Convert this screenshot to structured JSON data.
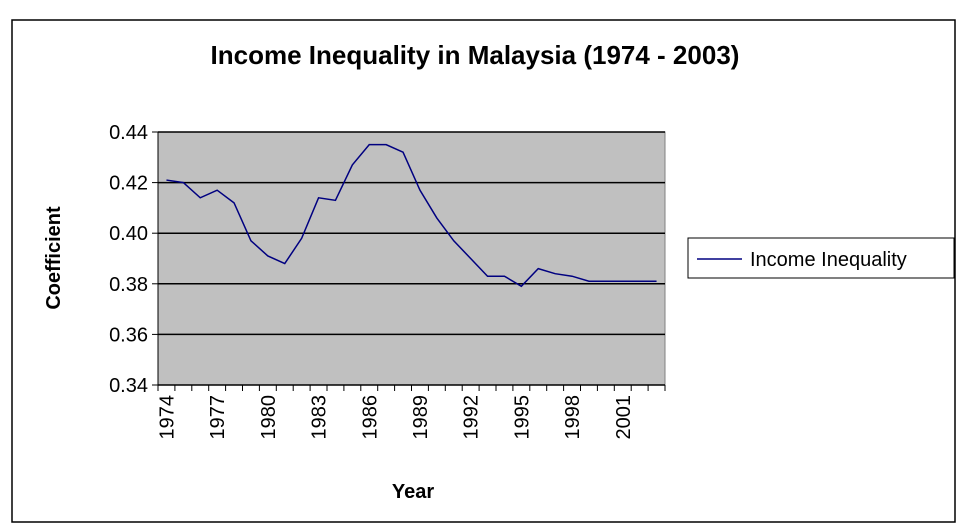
{
  "chart_data": {
    "type": "line",
    "title": "Income Inequality in Malaysia (1974 - 2003)",
    "x_label": "Year",
    "y_label": "Coefficient",
    "categories": [
      "1974",
      null,
      null,
      "1977",
      null,
      null,
      "1980",
      null,
      null,
      "1983",
      null,
      null,
      "1986",
      null,
      null,
      "1989",
      null,
      null,
      "1992",
      null,
      null,
      "1995",
      null,
      null,
      "1998",
      null,
      null,
      "2001",
      null,
      null
    ],
    "series": [
      {
        "name": "Income Inequality",
        "color": "#000080",
        "values": [
          0.421,
          0.42,
          0.414,
          0.417,
          0.412,
          0.397,
          0.391,
          0.388,
          0.398,
          0.414,
          0.413,
          0.427,
          0.435,
          0.435,
          0.432,
          0.417,
          0.406,
          0.397,
          0.39,
          0.383,
          0.383,
          0.379,
          0.386,
          0.384,
          0.383,
          0.381,
          0.381,
          0.381,
          0.381,
          0.381
        ]
      }
    ],
    "ylim": [
      0.34,
      0.44
    ],
    "yticks": [
      0.34,
      0.36,
      0.38,
      {
        "value": 0.4,
        "label": "0.40"
      },
      0.42,
      0.44
    ],
    "grid": true,
    "legend": "right",
    "plot_background": "#c0c0c0"
  }
}
